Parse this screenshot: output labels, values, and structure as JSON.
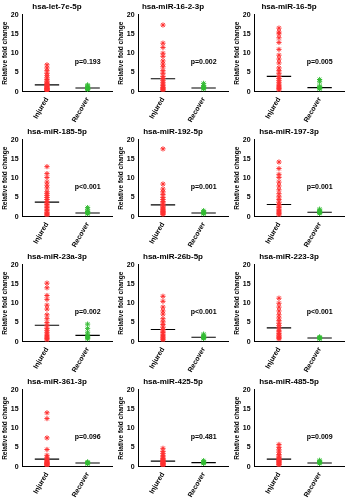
{
  "chart_data": [
    {
      "type": "scatter",
      "title": "hsa-let-7e-5p",
      "y_label": "Relative fold change",
      "categories": [
        "Injured",
        "Recover"
      ],
      "colors": [
        "#ff3030",
        "#33bb33"
      ],
      "marker": "star",
      "grid": false,
      "ylim": [
        0,
        20
      ],
      "yticks": [
        0,
        5,
        10,
        15,
        20
      ],
      "annotation": "p=0.193",
      "values": [
        [
          7.0,
          6.2,
          5.5,
          4.8,
          4.2,
          3.6,
          3.2,
          2.8,
          2.5,
          2.2,
          2.0,
          1.8,
          1.6,
          1.4,
          1.2,
          1.0,
          0.9,
          0.8,
          0.7,
          0.6,
          0.5,
          0.4,
          0.3
        ],
        [
          1.8,
          1.5,
          1.2,
          1.0,
          0.9,
          0.8,
          0.7,
          0.6
        ]
      ],
      "means": [
        1.8,
        1.0
      ]
    },
    {
      "type": "scatter",
      "title": "hsa-miR-16-2-3p",
      "y_label": "Relative fold change",
      "categories": [
        "Injured",
        "Recover"
      ],
      "colors": [
        "#ff3030",
        "#33bb33"
      ],
      "marker": "star",
      "grid": false,
      "ylim": [
        0,
        20
      ],
      "yticks": [
        0,
        5,
        10,
        15,
        20
      ],
      "annotation": "p=0.002",
      "values": [
        [
          17.3,
          12.6,
          11.5,
          10.0,
          9.2,
          8.0,
          7.2,
          6.5,
          5.5,
          4.8,
          4.0,
          3.5,
          3.0,
          2.5,
          2.0,
          1.6,
          1.2,
          1.0,
          0.8,
          0.6,
          0.4
        ],
        [
          2.2,
          1.6,
          1.3,
          1.1,
          1.0,
          0.9,
          0.8
        ]
      ],
      "means": [
        3.4,
        1.0
      ]
    },
    {
      "type": "scatter",
      "title": "hsa-miR-16-5p",
      "y_label": "Relative fold change",
      "categories": [
        "Injured",
        "Recover"
      ],
      "colors": [
        "#ff3030",
        "#33bb33"
      ],
      "marker": "star",
      "grid": false,
      "ylim": [
        0,
        20
      ],
      "yticks": [
        0,
        5,
        10,
        15,
        20
      ],
      "annotation": "p=0.005",
      "values": [
        [
          16.5,
          15.5,
          15.0,
          14.0,
          12.8,
          11.0,
          9.5,
          8.5,
          7.5,
          6.2,
          5.5,
          4.8,
          4.0,
          3.5,
          3.0,
          2.5,
          2.0,
          1.6,
          1.3,
          1.0,
          0.8,
          0.5
        ],
        [
          3.2,
          2.6,
          1.5,
          1.2,
          1.0,
          0.9,
          0.8
        ]
      ],
      "means": [
        4.0,
        1.1
      ]
    },
    {
      "type": "scatter",
      "title": "hsa-miR-185-5p",
      "y_label": "Relative fold change",
      "categories": [
        "Injured",
        "Recover"
      ],
      "colors": [
        "#ff3030",
        "#33bb33"
      ],
      "marker": "star",
      "grid": false,
      "ylim": [
        0,
        20
      ],
      "yticks": [
        0,
        5,
        10,
        15,
        20
      ],
      "annotation": "p<0.001",
      "values": [
        [
          13.0,
          11.2,
          10.2,
          9.0,
          8.2,
          7.5,
          6.5,
          6.0,
          5.5,
          5.0,
          4.5,
          4.0,
          3.6,
          3.2,
          2.8,
          2.4,
          2.0,
          1.6,
          1.2,
          0.9,
          0.6,
          0.4
        ],
        [
          2.4,
          1.8,
          1.4,
          1.2,
          1.0,
          0.9,
          0.8
        ]
      ],
      "means": [
        3.8,
        1.0
      ]
    },
    {
      "type": "scatter",
      "title": "hsa-miR-192-5p",
      "y_label": "Relative fold change",
      "categories": [
        "Injured",
        "Recover"
      ],
      "colors": [
        "#ff3030",
        "#33bb33"
      ],
      "marker": "star",
      "grid": false,
      "ylim": [
        0,
        20
      ],
      "yticks": [
        0,
        5,
        10,
        15,
        20
      ],
      "annotation": "p=0.001",
      "values": [
        [
          17.6,
          8.5,
          7.2,
          6.5,
          5.8,
          5.0,
          4.5,
          4.0,
          3.6,
          3.2,
          2.8,
          2.5,
          2.2,
          1.9,
          1.6,
          1.4,
          1.2,
          1.0,
          0.8,
          0.6
        ],
        [
          1.6,
          1.3,
          1.1,
          1.0,
          0.9,
          0.8
        ]
      ],
      "means": [
        3.1,
        1.0
      ]
    },
    {
      "type": "scatter",
      "title": "hsa-miR-197-3p",
      "y_label": "Relative fold change",
      "categories": [
        "Injured",
        "Recover"
      ],
      "colors": [
        "#ff3030",
        "#33bb33"
      ],
      "marker": "star",
      "grid": false,
      "ylim": [
        0,
        20
      ],
      "yticks": [
        0,
        5,
        10,
        15,
        20
      ],
      "annotation": "p=0.001",
      "values": [
        [
          14.2,
          12.5,
          11.0,
          10.2,
          9.0,
          8.0,
          7.0,
          6.0,
          5.2,
          4.5,
          3.8,
          3.2,
          2.8,
          2.4,
          2.0,
          1.6,
          1.3,
          1.0,
          0.8,
          0.5
        ],
        [
          2.0,
          1.6,
          1.4,
          1.2,
          1.0,
          0.9
        ]
      ],
      "means": [
        3.2,
        1.2
      ]
    },
    {
      "type": "scatter",
      "title": "hsa-miR-23a-3p",
      "y_label": "Relative fold change",
      "categories": [
        "Injured",
        "Recover"
      ],
      "colors": [
        "#ff3030",
        "#33bb33"
      ],
      "marker": "star",
      "grid": false,
      "ylim": [
        0,
        20
      ],
      "yticks": [
        0,
        5,
        10,
        15,
        20
      ],
      "annotation": "p=0.002",
      "values": [
        [
          15.2,
          14.0,
          12.0,
          11.0,
          9.5,
          8.5,
          7.0,
          6.0,
          5.0,
          4.2,
          3.5,
          3.0,
          2.5,
          2.0,
          1.6,
          1.3,
          1.0,
          0.8,
          0.5
        ],
        [
          4.6,
          3.5,
          2.5,
          1.8,
          1.5,
          1.2,
          1.0,
          0.8
        ]
      ],
      "means": [
        4.3,
        1.7
      ]
    },
    {
      "type": "scatter",
      "title": "hsa-miR-26b-5p",
      "y_label": "Relative fold change",
      "categories": [
        "Injured",
        "Recover"
      ],
      "colors": [
        "#ff3030",
        "#33bb33"
      ],
      "marker": "star",
      "grid": false,
      "ylim": [
        0,
        20
      ],
      "yticks": [
        0,
        5,
        10,
        15,
        20
      ],
      "annotation": "p<0.001",
      "values": [
        [
          11.8,
          10.5,
          9.0,
          8.0,
          7.2,
          6.0,
          5.2,
          4.5,
          3.8,
          3.2,
          2.8,
          2.4,
          2.0,
          1.6,
          1.3,
          1.0,
          0.7,
          0.5
        ],
        [
          2.0,
          1.6,
          1.3,
          1.1,
          1.0,
          0.9
        ]
      ],
      "means": [
        3.2,
        1.2
      ]
    },
    {
      "type": "scatter",
      "title": "hsa-miR-223-3p",
      "y_label": "Relative fold change",
      "categories": [
        "Injured",
        "Recover"
      ],
      "colors": [
        "#ff3030",
        "#33bb33"
      ],
      "marker": "star",
      "grid": false,
      "ylim": [
        0,
        20
      ],
      "yticks": [
        0,
        5,
        10,
        15,
        20
      ],
      "annotation": "p<0.001",
      "values": [
        [
          11.3,
          10.0,
          9.0,
          8.0,
          7.0,
          6.2,
          5.5,
          4.8,
          4.2,
          3.6,
          3.0,
          2.6,
          2.2,
          1.8,
          1.5,
          1.2,
          1.0,
          0.8
        ],
        [
          1.3,
          1.1,
          1.0,
          0.9,
          0.8
        ]
      ],
      "means": [
        3.6,
        1.0
      ]
    },
    {
      "type": "scatter",
      "title": "hsa-miR-361-3p",
      "y_label": "Relative fold change",
      "categories": [
        "Injured",
        "Recover"
      ],
      "colors": [
        "#ff3030",
        "#33bb33"
      ],
      "marker": "star",
      "grid": false,
      "ylim": [
        0,
        20
      ],
      "yticks": [
        0,
        5,
        10,
        15,
        20
      ],
      "annotation": "p=0.096",
      "values": [
        [
          14.0,
          12.5,
          7.5,
          4.5,
          3.0,
          2.5,
          2.0,
          1.7,
          1.5,
          1.3,
          1.1,
          1.0,
          0.9,
          0.8,
          0.6,
          0.5,
          0.4
        ],
        [
          1.3,
          1.1,
          1.0,
          0.9,
          0.8
        ]
      ],
      "means": [
        2.0,
        1.0
      ]
    },
    {
      "type": "scatter",
      "title": "hsa-miR-425-5p",
      "y_label": "Relative fold change",
      "categories": [
        "Injured",
        "Recover"
      ],
      "colors": [
        "#ff3030",
        "#33bb33"
      ],
      "marker": "star",
      "grid": false,
      "ylim": [
        0,
        20
      ],
      "yticks": [
        0,
        5,
        10,
        15,
        20
      ],
      "annotation": "p=0.481",
      "values": [
        [
          4.8,
          4.0,
          3.5,
          3.0,
          2.6,
          2.2,
          2.0,
          1.8,
          1.6,
          1.4,
          1.2,
          1.0,
          0.9,
          0.8,
          0.6,
          0.5,
          0.4
        ],
        [
          1.6,
          1.3,
          1.1,
          1.0,
          0.9
        ]
      ],
      "means": [
        1.5,
        1.1
      ]
    },
    {
      "type": "scatter",
      "title": "hsa-miR-485-5p",
      "y_label": "Relative fold change",
      "categories": [
        "Injured",
        "Recover"
      ],
      "colors": [
        "#ff3030",
        "#33bb33"
      ],
      "marker": "star",
      "grid": false,
      "ylim": [
        0,
        20
      ],
      "yticks": [
        0,
        5,
        10,
        15,
        20
      ],
      "annotation": "p=0.009",
      "values": [
        [
          5.8,
          5.0,
          4.4,
          3.8,
          3.2,
          2.8,
          2.4,
          2.1,
          1.8,
          1.6,
          1.4,
          1.2,
          1.0,
          0.8,
          0.6,
          0.5
        ],
        [
          1.7,
          1.4,
          1.2,
          1.0,
          0.9
        ]
      ],
      "means": [
        2.0,
        1.0
      ]
    }
  ]
}
